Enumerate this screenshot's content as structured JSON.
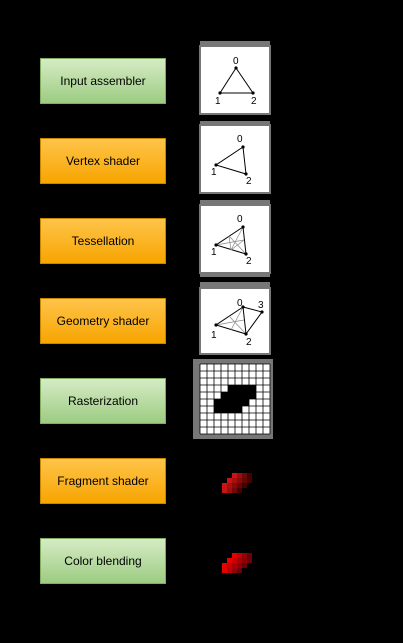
{
  "stages": [
    {
      "label": "Input assembler",
      "kind": "fixed"
    },
    {
      "label": "Vertex shader",
      "kind": "programmable"
    },
    {
      "label": "Tessellation",
      "kind": "programmable"
    },
    {
      "label": "Geometry shader",
      "kind": "programmable"
    },
    {
      "label": "Rasterization",
      "kind": "fixed"
    },
    {
      "label": "Fragment shader",
      "kind": "programmable"
    },
    {
      "label": "Color blending",
      "kind": "fixed"
    }
  ],
  "vertex_labels": {
    "v0": "0",
    "v1": "1",
    "v2": "2",
    "v3": "3"
  },
  "colors": {
    "fixed_stage": "#9ccc82",
    "programmable_stage": "#f7a500",
    "fragment": "#e00000"
  }
}
